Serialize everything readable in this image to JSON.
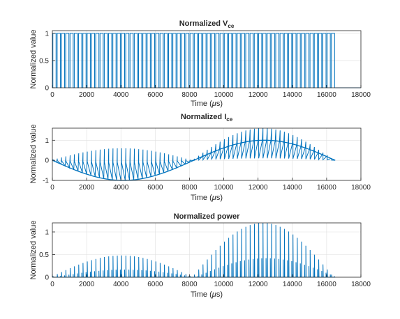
{
  "figure": {
    "background": "#ffffff",
    "axes_background": "#ffffff",
    "axis_color": "#262626",
    "grid_color": "#dfdfdf",
    "line_color": "#0072bd"
  },
  "chart_data": [
    {
      "type": "line",
      "title": "Normalized V",
      "title_subscript": "ce",
      "xlabel": "Time (",
      "xlabel_symbol": "μ",
      "xlabel_suffix": "s)",
      "ylabel": "Normalized value",
      "xlim": [
        0,
        18000
      ],
      "ylim": [
        0,
        1.05
      ],
      "xticks": [
        0,
        2000,
        4000,
        6000,
        8000,
        10000,
        12000,
        14000,
        16000,
        18000
      ],
      "xtick_labels": [
        "0",
        "2000",
        "4000",
        "6000",
        "8000",
        "10000",
        "12000",
        "14000",
        "16000",
        "18000"
      ],
      "yticks": [
        0,
        0.5,
        1
      ],
      "ytick_labels": [
        "0",
        "0.5",
        "1"
      ],
      "grid": true,
      "series": [
        {
          "waveform": "switching pulses, normalized collector-emitter voltage",
          "t_start": 0,
          "t_end": 16500,
          "pulse_high": 1,
          "pulse_low": 0,
          "pulse_count": 66
        }
      ]
    },
    {
      "type": "line",
      "title": "Normalized I",
      "title_subscript": "ce",
      "xlabel": "Time (",
      "xlabel_symbol": "μ",
      "xlabel_suffix": "s)",
      "ylabel": "Normalized value",
      "xlim": [
        0,
        18000
      ],
      "ylim": [
        -1,
        1.6
      ],
      "xticks": [
        0,
        2000,
        4000,
        6000,
        8000,
        10000,
        12000,
        14000,
        16000,
        18000
      ],
      "xtick_labels": [
        "0",
        "2000",
        "4000",
        "6000",
        "8000",
        "10000",
        "12000",
        "14000",
        "16000",
        "18000"
      ],
      "yticks": [
        -1,
        0,
        1
      ],
      "ytick_labels": [
        "-1",
        "0",
        "1"
      ],
      "grid": true,
      "series": [
        {
          "waveform": "sinusoidal current envelope with switching spikes",
          "t_start": 0,
          "t_end": 16500,
          "envelope_amplitude": 1,
          "envelope_period": 16500,
          "envelope_minimum": [
            4200,
            -1
          ],
          "envelope_maximum": [
            12400,
            1
          ],
          "spike_peak_positive_half": 1.6,
          "spike_peak_negative_half": 0.6,
          "spike_count": 66
        }
      ]
    },
    {
      "type": "line",
      "title": "Normalized power",
      "xlabel": "Time (",
      "xlabel_symbol": "μ",
      "xlabel_suffix": "s)",
      "ylabel": "Normalized value",
      "xlim": [
        0,
        18000
      ],
      "ylim": [
        0,
        1.2
      ],
      "xticks": [
        0,
        2000,
        4000,
        6000,
        8000,
        10000,
        12000,
        14000,
        16000,
        18000
      ],
      "xtick_labels": [
        "0",
        "2000",
        "4000",
        "6000",
        "8000",
        "10000",
        "12000",
        "14000",
        "16000",
        "18000"
      ],
      "yticks": [
        0,
        0.5,
        1
      ],
      "ytick_labels": [
        "0",
        "0.5",
        "1"
      ],
      "grid": true,
      "series": [
        {
          "waveform": "power switching spikes",
          "t_start": 0,
          "t_end": 16500,
          "peak_first_half": [
            4200,
            0.48
          ],
          "peak_second_half": [
            12400,
            1.2
          ],
          "spike_count": 66
        }
      ]
    }
  ]
}
